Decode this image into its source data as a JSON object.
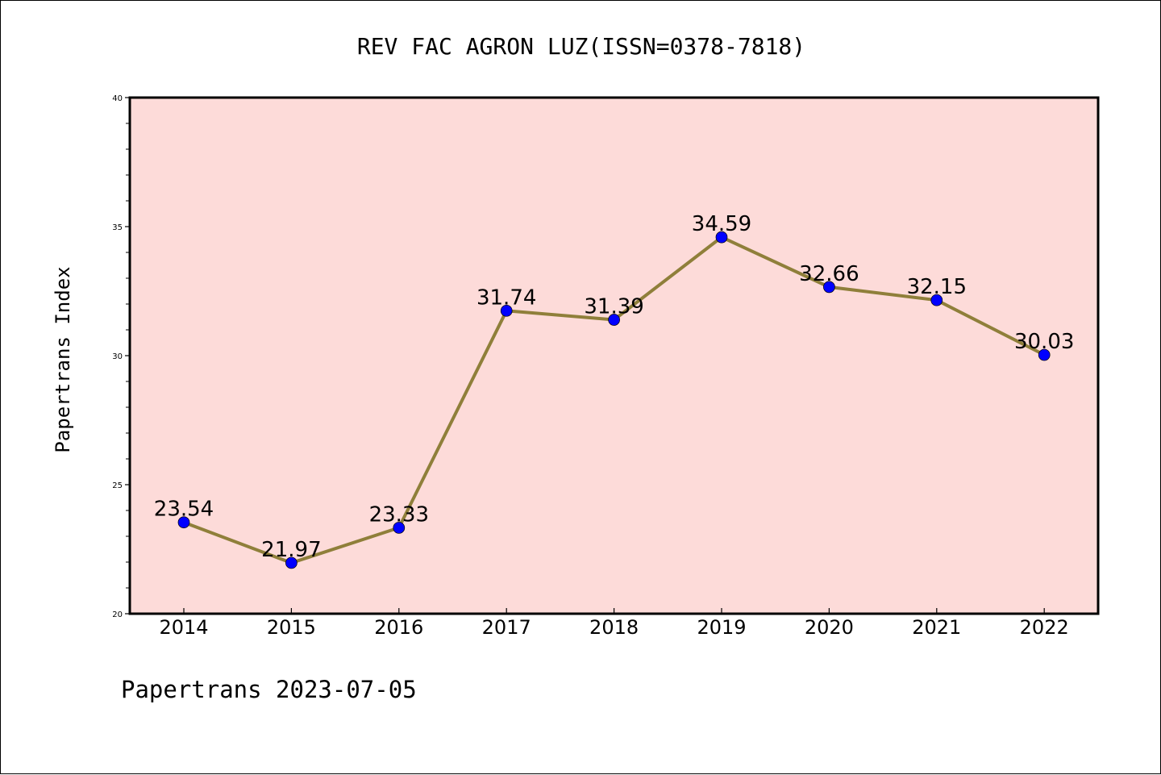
{
  "chart_data": {
    "type": "line",
    "title": "REV FAC AGRON LUZ(ISSN=0378-7818)",
    "xlabel": "",
    "ylabel": "Papertrans Index",
    "categories": [
      "2014",
      "2015",
      "2016",
      "2017",
      "2018",
      "2019",
      "2020",
      "2021",
      "2022"
    ],
    "series": [
      {
        "values": [
          23.54,
          21.97,
          23.33,
          31.74,
          31.39,
          34.59,
          32.66,
          32.15,
          30.03
        ],
        "labels": [
          "23.54",
          "21.97",
          "23.33",
          "31.74",
          "31.39",
          "34.59",
          "32.66",
          "32.15",
          "30.03"
        ]
      }
    ],
    "ylim": [
      20,
      40
    ],
    "yticks": [
      20,
      25,
      30,
      35,
      40
    ],
    "ytick_labels": [
      "20",
      "25",
      "30",
      "35",
      "40"
    ],
    "grid": false,
    "colors": {
      "plot_background": "#FDDBD9",
      "line": "#8F7F3A",
      "marker": "#0000FF"
    }
  },
  "footer": {
    "text": "Papertrans 2023-07-05"
  }
}
